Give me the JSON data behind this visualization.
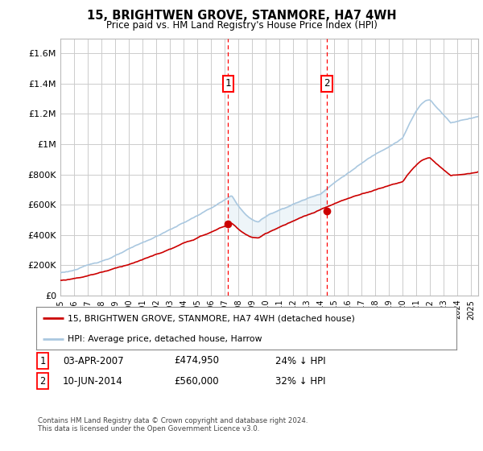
{
  "title": "15, BRIGHTWEN GROVE, STANMORE, HA7 4WH",
  "subtitle": "Price paid vs. HM Land Registry's House Price Index (HPI)",
  "background_color": "#ffffff",
  "plot_background": "#ffffff",
  "grid_color": "#cccccc",
  "ylim": [
    0,
    1700000
  ],
  "yticks": [
    0,
    200000,
    400000,
    600000,
    800000,
    1000000,
    1200000,
    1400000,
    1600000
  ],
  "ytick_labels": [
    "£0",
    "£200K",
    "£400K",
    "£600K",
    "£800K",
    "£1M",
    "£1.2M",
    "£1.4M",
    "£1.6M"
  ],
  "hpi_color": "#aac8e0",
  "hpi_fill_color": "#d0e4f0",
  "price_color": "#cc0000",
  "purchase1_date": 2007.25,
  "purchase1_price": 474950,
  "purchase2_date": 2014.44,
  "purchase2_price": 560000,
  "legend_line1": "15, BRIGHTWEN GROVE, STANMORE, HA7 4WH (detached house)",
  "legend_line2": "HPI: Average price, detached house, Harrow",
  "table_row1": [
    "1",
    "03-APR-2007",
    "£474,950",
    "24% ↓ HPI"
  ],
  "table_row2": [
    "2",
    "10-JUN-2014",
    "£560,000",
    "32% ↓ HPI"
  ],
  "footnote": "Contains HM Land Registry data © Crown copyright and database right 2024.\nThis data is licensed under the Open Government Licence v3.0.",
  "xmin": 1995,
  "xmax": 2025.5
}
